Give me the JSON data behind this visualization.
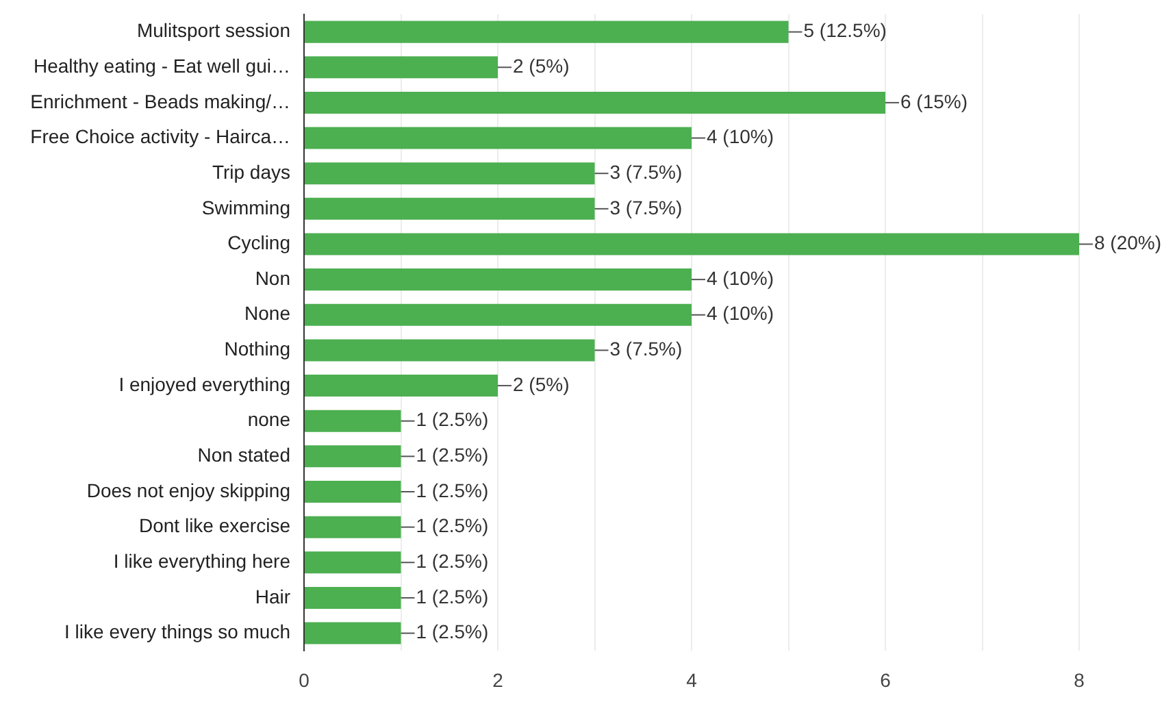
{
  "chart_data": {
    "type": "bar",
    "orientation": "horizontal",
    "color": "#4caf50",
    "categories": [
      "Mulitsport session",
      "Healthy eating - Eat well gui…",
      "Enrichment - Beads making/…",
      "Free Choice activity - Hairca…",
      "Trip days",
      "Swimming",
      "Cycling",
      "Non",
      "None",
      "Nothing",
      "I enjoyed everything",
      "none",
      "Non stated",
      "Does not enjoy skipping",
      "Dont like exercise",
      "I like everything here",
      "Hair",
      "I like every things so much"
    ],
    "values": [
      5,
      2,
      6,
      4,
      3,
      3,
      8,
      4,
      4,
      3,
      2,
      1,
      1,
      1,
      1,
      1,
      1,
      1
    ],
    "value_labels": [
      "5 (12.5%)",
      "2 (5%)",
      "6 (15%)",
      "4 (10%)",
      "3 (7.5%)",
      "3 (7.5%)",
      "8 (20%)",
      "4 (10%)",
      "4 (10%)",
      "3 (7.5%)",
      "2 (5%)",
      "1 (2.5%)",
      "1 (2.5%)",
      "1 (2.5%)",
      "1 (2.5%)",
      "1 (2.5%)",
      "1 (2.5%)",
      "1 (2.5%)"
    ],
    "xlim": [
      0,
      8
    ],
    "xticks": [
      0,
      {
        "value": 1,
        "label": null
      },
      2,
      {
        "value": 3,
        "label": null
      },
      4,
      {
        "value": 5,
        "label": null
      },
      6,
      {
        "value": 7,
        "label": null
      },
      8
    ],
    "grid": "x",
    "legend": false
  }
}
